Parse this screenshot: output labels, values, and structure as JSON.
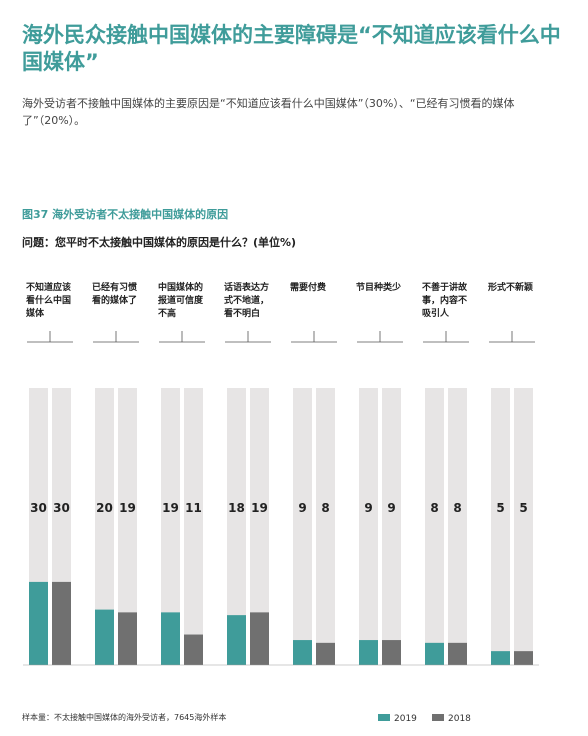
{
  "chart_data": {
    "type": "bar",
    "title": "海外民众接触中国媒体的主要障碍是“不知道应该看什么中国媒体”",
    "subtitle": "海外受访者不接触中国媒体的主要原因是“不知道应该看什么中国媒体”（30%）、“已经有习惯看的媒体了”（20%）。",
    "figure_label": "图37 海外受访者不太接触中国媒体的原因",
    "question": "问题：您平时不太接触中国媒体的原因是什么？(单位%)",
    "categories": [
      "不知道应该看什么中国媒体",
      "已经有习惯看的媒体了",
      "中国媒体的报道可信度不高",
      "话语表达方式不地道，看不明白",
      "需要付费",
      "节目种类少",
      "不善于讲故事，内容不吸引人",
      "形式不新颖"
    ],
    "series": [
      {
        "name": "2019",
        "color": "#3f9c9a",
        "values": [
          30,
          20,
          19,
          18,
          9,
          9,
          8,
          5
        ]
      },
      {
        "name": "2018",
        "color": "#707070",
        "values": [
          30,
          19,
          11,
          19,
          8,
          9,
          8,
          5
        ]
      }
    ],
    "ylim": [
      0,
      100
    ],
    "source": "样本量：不太接触中国媒体的海外受访者，7645海外样本"
  }
}
